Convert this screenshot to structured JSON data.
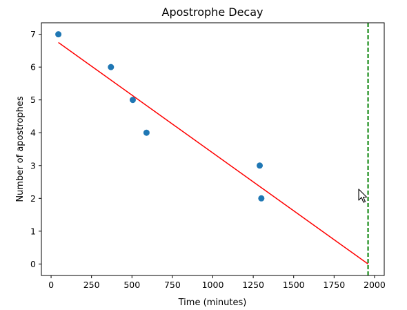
{
  "chart_data": {
    "type": "scatter",
    "title": "Apostrophe Decay",
    "xlabel": "Time (minutes)",
    "ylabel": "Number of apostrophes",
    "xlim": [
      -60,
      2060
    ],
    "ylim": [
      -0.35,
      7.35
    ],
    "xticks": [
      0,
      250,
      500,
      750,
      1000,
      1250,
      1500,
      1750,
      2000
    ],
    "yticks": [
      0,
      1,
      2,
      3,
      4,
      5,
      6,
      7
    ],
    "points": {
      "x": [
        45,
        370,
        505,
        590,
        1290,
        1300
      ],
      "y": [
        7,
        6,
        5,
        4,
        3,
        2
      ]
    },
    "fit_line": {
      "x": [
        45,
        1960
      ],
      "y": [
        6.75,
        0
      ]
    },
    "vertical_line": {
      "x": 1960
    },
    "colors": {
      "points": "#1f77b4",
      "fit_line": "#ff0000",
      "vertical_line": "#008000"
    },
    "grid": false,
    "legend": "none"
  },
  "cursor": {
    "icon": "mouse-pointer-icon"
  }
}
